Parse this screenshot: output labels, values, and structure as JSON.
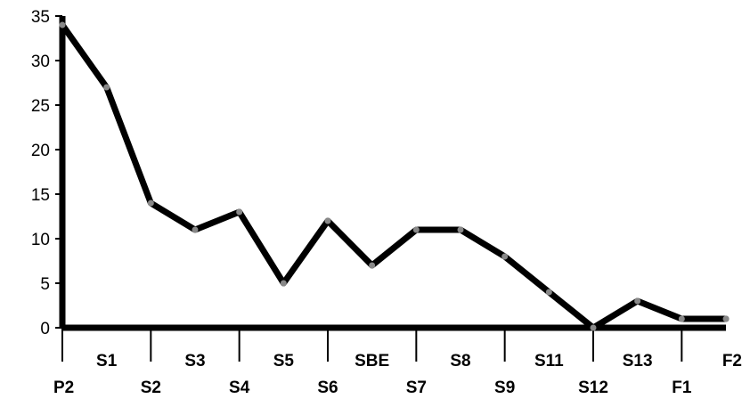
{
  "chart_data": {
    "type": "line",
    "title": "",
    "xlabel": "",
    "ylabel": "",
    "ylim": [
      0,
      35
    ],
    "yticks": [
      0,
      5,
      10,
      15,
      20,
      25,
      30,
      35
    ],
    "grid": false,
    "categories": [
      "P2",
      "S1",
      "S2",
      "S3",
      "S4",
      "S5",
      "S6",
      "SBE",
      "S7",
      "S8",
      "S9",
      "S11",
      "S12",
      "S13",
      "F1",
      "F2"
    ],
    "series": [
      {
        "values": [
          34,
          27,
          14,
          11,
          13,
          5,
          12,
          7,
          11,
          11,
          8,
          4,
          0,
          3,
          1,
          1
        ],
        "color": "#000000"
      }
    ]
  }
}
